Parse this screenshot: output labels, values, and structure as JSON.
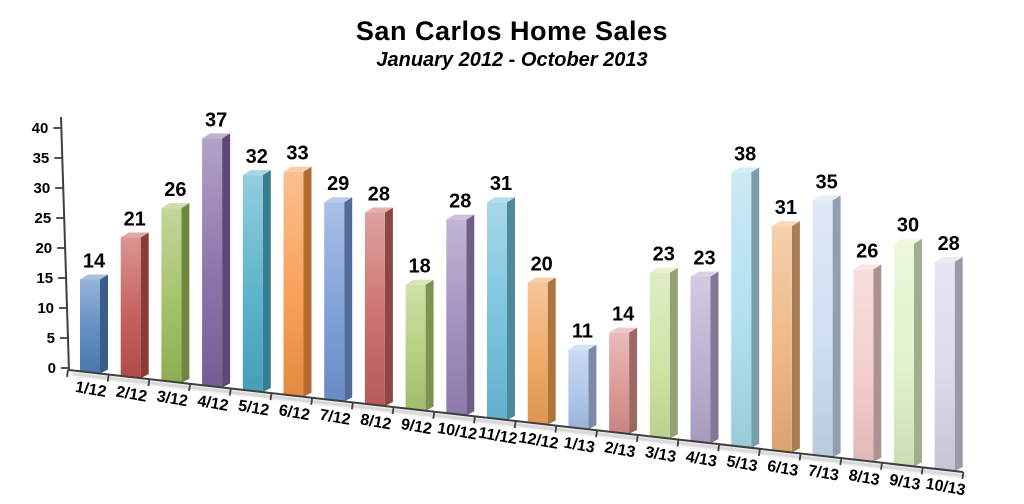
{
  "header": {
    "title": "San Carlos Home Sales",
    "subtitle": "January 2012 - October 2013"
  },
  "chart_data": {
    "type": "bar",
    "style": "3d-perspective-column",
    "title": "San Carlos Home Sales",
    "subtitle": "January 2012 - October 2013",
    "categories": [
      "1/12",
      "2/12",
      "3/12",
      "4/12",
      "5/12",
      "6/12",
      "7/12",
      "8/12",
      "9/12",
      "10/12",
      "11/12",
      "12/12",
      "1/13",
      "2/13",
      "3/13",
      "4/13",
      "5/13",
      "6/13",
      "7/13",
      "8/13",
      "9/13",
      "10/13"
    ],
    "values": [
      14,
      21,
      26,
      37,
      32,
      33,
      29,
      28,
      18,
      28,
      31,
      20,
      11,
      14,
      23,
      23,
      38,
      31,
      35,
      26,
      30,
      28
    ],
    "data_labels": [
      14,
      21,
      26,
      37,
      32,
      33,
      29,
      28,
      18,
      28,
      31,
      20,
      11,
      14,
      23,
      23,
      38,
      31,
      35,
      26,
      30,
      28
    ],
    "bar_colors": [
      "#4F81BD",
      "#C0504D",
      "#9BBB59",
      "#8064A2",
      "#4BACC6",
      "#F79646",
      "#7296D4",
      "#C6635F",
      "#AFCB72",
      "#9885B8",
      "#6CBDDA",
      "#EFA156",
      "#A8C1EA",
      "#D9908D",
      "#CBE19C",
      "#B5A7CE",
      "#A8DCEC",
      "#EDB078",
      "#CBDAF2",
      "#F0CAC8",
      "#DFF1C4",
      "#DAD4E9"
    ],
    "xlabel": "",
    "ylabel": "",
    "ylim": [
      0,
      40
    ],
    "yticks": [
      0,
      5,
      10,
      15,
      20,
      25,
      30,
      35,
      40
    ],
    "grid": false,
    "legend": false,
    "axis_color": "#3F3F3F",
    "label_color": "#000000",
    "background": "#FFFFFF"
  }
}
